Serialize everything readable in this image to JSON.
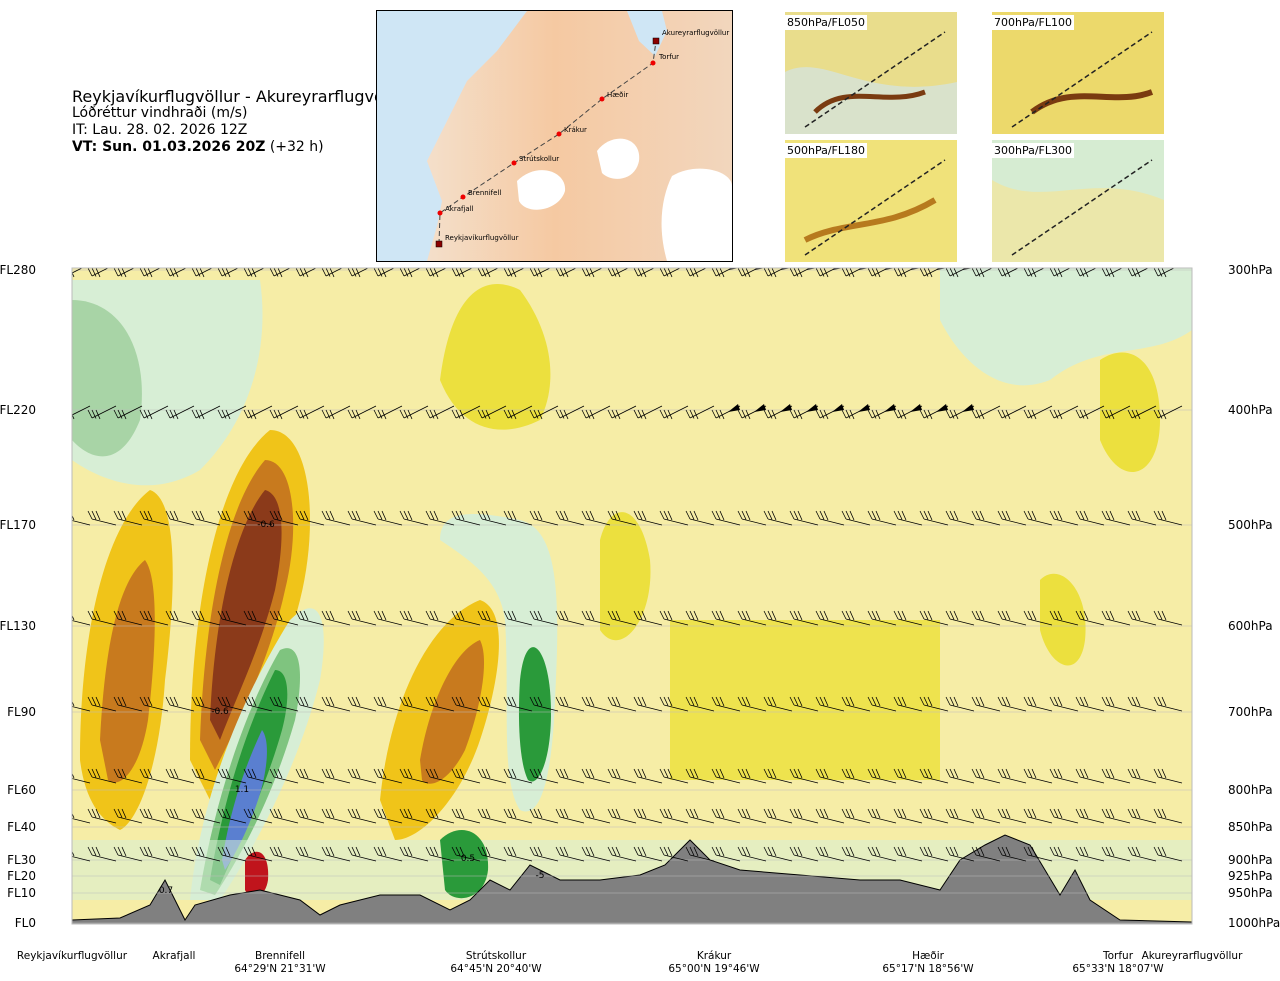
{
  "header": {
    "route": "Reykjavíkurflugvöllur - Akureyrarflugvöllur",
    "variable": "Lóðréttur vindhraði (m/s)",
    "issue_time": "IT: Lau. 28. 02. 2026 12Z",
    "valid_time_bold": "VT: Sun. 01.03.2026 20Z",
    "valid_time_offset": " (+32 h)"
  },
  "map": {
    "stations": [
      "Akureyrarflugvöllur",
      "Torfur",
      "Hæðir",
      "Krákur",
      "Strútskollur",
      "Brennifell",
      "Akrafjall",
      "Reykjavíkurflugvöllur"
    ]
  },
  "thumbnails": [
    {
      "label": "850hPa/FL050"
    },
    {
      "label": "700hPa/FL100"
    },
    {
      "label": "500hPa/FL180"
    },
    {
      "label": "300hPa/FL300"
    }
  ],
  "colors": {
    "ground": "#808080",
    "strong_down": "#8b3a1a",
    "mid_down": "#c87a1e",
    "light_down": "#f0c419",
    "weak_down": "#f6eda6",
    "weak_up": "#d7eed5",
    "mid_up": "#7fc47f",
    "strong_up": "#2a9a3a",
    "very_strong_up": "#5a7fd0"
  },
  "chart_data": {
    "type": "heatmap",
    "title": "Lóðréttur vindhraði (m/s)",
    "left_axis_labels": [
      "FL280",
      "FL220",
      "FL170",
      "FL130",
      "FL90",
      "FL60",
      "FL40",
      "FL30",
      "FL20",
      "FL10",
      "FL0"
    ],
    "right_axis_labels": [
      "300hPa",
      "400hPa",
      "500hPa",
      "600hPa",
      "700hPa",
      "800hPa",
      "850hPa",
      "900hPa",
      "925hPa",
      "950hPa",
      "1000hPa"
    ],
    "contour_labels": [
      {
        "text": "-0.6",
        "fl": 170
      },
      {
        "text": "-0.6",
        "fl": 90
      },
      {
        "text": "1.1",
        "fl": 60
      },
      {
        "text": "0.7",
        "fl": 10
      },
      {
        "text": "0.5",
        "fl": 30
      },
      {
        "text": "-5",
        "fl": 20
      }
    ],
    "route_points": [
      {
        "name": "Reykjavíkurflugvöllur",
        "coord": ""
      },
      {
        "name": "Akrafjall",
        "coord": ""
      },
      {
        "name": "Brennifell",
        "coord": "64°29'N 21°31'W"
      },
      {
        "name": "Strútskollur",
        "coord": "64°45'N 20°40'W"
      },
      {
        "name": "Krákur",
        "coord": "65°00'N 19°46'W"
      },
      {
        "name": "Hæðir",
        "coord": "65°17'N 18°56'W"
      },
      {
        "name": "Torfur",
        "coord": "65°33'N 18°07'W"
      },
      {
        "name": "Akureyrarflugvöllur",
        "coord": ""
      }
    ]
  }
}
